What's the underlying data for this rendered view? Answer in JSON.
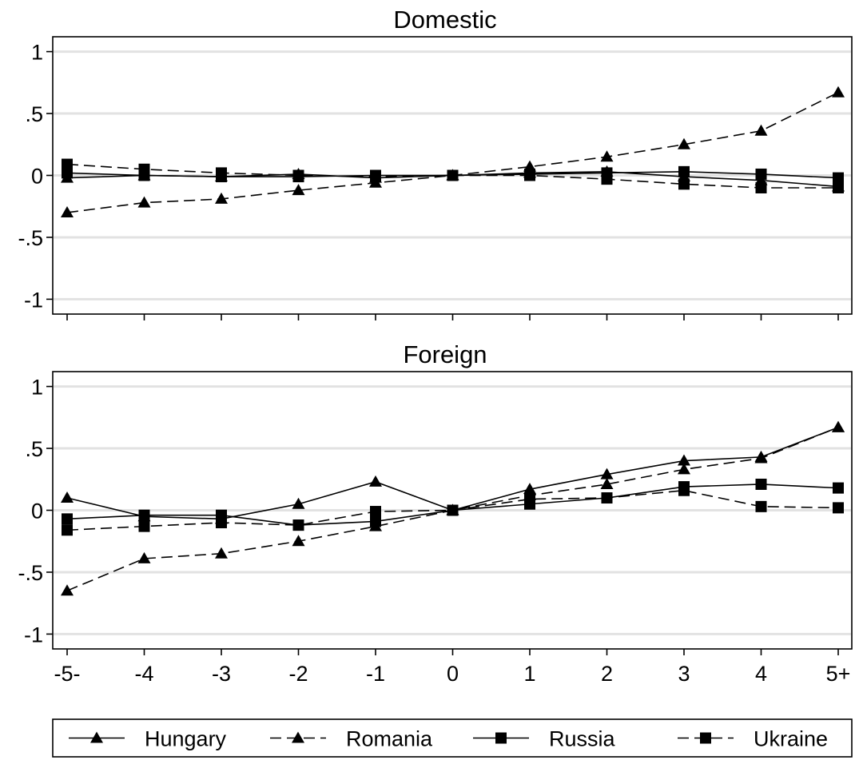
{
  "chart_data": [
    {
      "type": "line",
      "title": "Domestic",
      "categories": [
        "-5-",
        "-4",
        "-3",
        "-2",
        "-1",
        "0",
        "1",
        "2",
        "3",
        "4",
        "5+"
      ],
      "yticks": [
        "1",
        ".5",
        "0",
        "-.5",
        "-1"
      ],
      "ytick_values": [
        1,
        0.5,
        0,
        -0.5,
        -1
      ],
      "ylim": [
        -1.12,
        1.12
      ],
      "grid": true,
      "series": [
        {
          "name": "Hungary",
          "marker": "triangle",
          "dash": "solid",
          "values": [
            -0.02,
            0.0,
            -0.01,
            0.01,
            -0.02,
            0.0,
            0.02,
            0.03,
            -0.01,
            -0.04,
            -0.09
          ]
        },
        {
          "name": "Romania",
          "marker": "triangle",
          "dash": "dashed",
          "values": [
            -0.3,
            -0.22,
            -0.19,
            -0.12,
            -0.06,
            0.0,
            0.07,
            0.15,
            0.25,
            0.36,
            0.67
          ]
        },
        {
          "name": "Russia",
          "marker": "square",
          "dash": "solid",
          "values": [
            0.02,
            0.0,
            -0.01,
            -0.01,
            0.0,
            0.0,
            0.01,
            0.02,
            0.03,
            0.01,
            -0.02
          ]
        },
        {
          "name": "Ukraine",
          "marker": "square",
          "dash": "dashed",
          "values": [
            0.09,
            0.05,
            0.02,
            0.0,
            -0.01,
            0.0,
            0.0,
            -0.03,
            -0.07,
            -0.1,
            -0.1
          ]
        }
      ]
    },
    {
      "type": "line",
      "title": "Foreign",
      "categories": [
        "-5-",
        "-4",
        "-3",
        "-2",
        "-1",
        "0",
        "1",
        "2",
        "3",
        "4",
        "5+"
      ],
      "yticks": [
        "1",
        ".5",
        "0",
        "-.5",
        "-1"
      ],
      "ytick_values": [
        1,
        0.5,
        0,
        -0.5,
        -1
      ],
      "ylim": [
        -1.12,
        1.12
      ],
      "grid": true,
      "series": [
        {
          "name": "Hungary",
          "marker": "triangle",
          "dash": "solid",
          "values": [
            0.1,
            -0.05,
            -0.07,
            0.05,
            0.23,
            0.0,
            0.17,
            0.29,
            0.4,
            0.43,
            0.67
          ]
        },
        {
          "name": "Romania",
          "marker": "triangle",
          "dash": "dashed",
          "values": [
            -0.65,
            -0.39,
            -0.35,
            -0.25,
            -0.13,
            0.0,
            0.12,
            0.21,
            0.33,
            0.42,
            0.67
          ]
        },
        {
          "name": "Russia",
          "marker": "square",
          "dash": "solid",
          "values": [
            -0.07,
            -0.04,
            -0.04,
            -0.12,
            -0.09,
            0.0,
            0.05,
            0.1,
            0.19,
            0.21,
            0.18
          ]
        },
        {
          "name": "Ukraine",
          "marker": "square",
          "dash": "dashed",
          "values": [
            -0.16,
            -0.13,
            -0.1,
            -0.12,
            -0.01,
            0.0,
            0.09,
            0.1,
            0.16,
            0.03,
            0.02
          ]
        }
      ]
    }
  ],
  "legend": {
    "position": "bottom",
    "entries": [
      {
        "name": "Hungary",
        "marker": "triangle",
        "dash": "solid"
      },
      {
        "name": "Romania",
        "marker": "triangle",
        "dash": "dashed"
      },
      {
        "name": "Russia",
        "marker": "square",
        "dash": "solid"
      },
      {
        "name": "Ukraine",
        "marker": "square",
        "dash": "dashed"
      }
    ]
  },
  "colors": {
    "line": "#000000",
    "grid": "#e2e2e2",
    "background": "#ffffff"
  }
}
